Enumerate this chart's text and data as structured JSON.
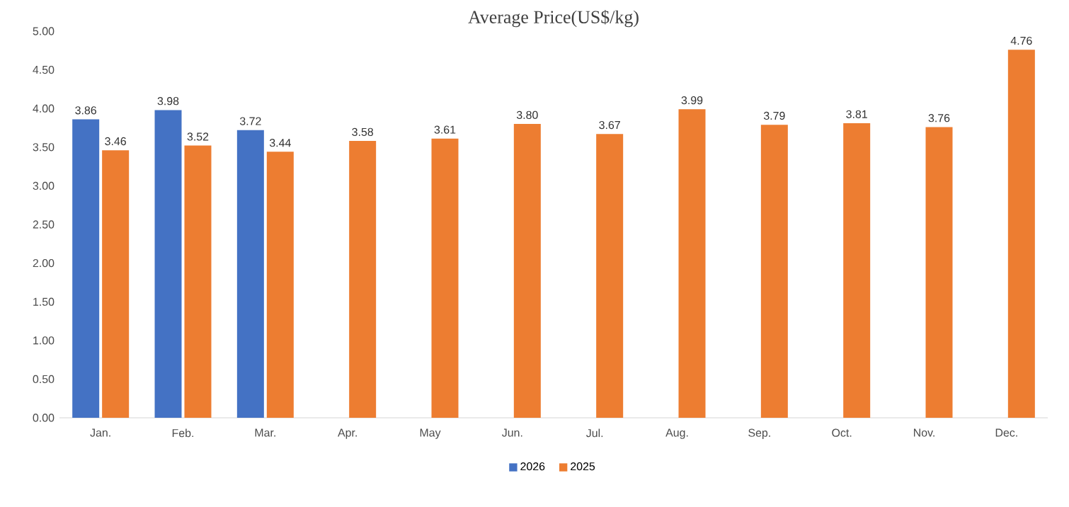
{
  "chart_data": {
    "type": "bar",
    "title": "Average Price(US$/kg)",
    "categories": [
      "Jan.",
      "Feb.",
      "Mar.",
      "Apr.",
      "May",
      "Jun.",
      "Jul.",
      "Aug.",
      "Sep.",
      "Oct.",
      "Nov.",
      "Dec."
    ],
    "series": [
      {
        "name": "2026",
        "color": "#4472c4",
        "values": [
          3.86,
          3.98,
          3.72,
          null,
          null,
          null,
          null,
          null,
          null,
          null,
          null,
          null
        ],
        "value_labels": [
          "3.86",
          "3.98",
          "3.72",
          null,
          null,
          null,
          null,
          null,
          null,
          null,
          null,
          null
        ]
      },
      {
        "name": "2025",
        "color": "#ed7d31",
        "values": [
          3.46,
          3.52,
          3.44,
          3.58,
          3.61,
          3.8,
          3.67,
          3.99,
          3.79,
          3.81,
          3.76,
          4.76
        ],
        "value_labels": [
          "3.46",
          "3.52",
          "3.44",
          "3.58",
          "3.61",
          "3.80",
          "3.67",
          "3.99",
          "3.79",
          "3.81",
          "3.76",
          "4.76"
        ]
      }
    ],
    "ylim": [
      0,
      5
    ],
    "yticks": [
      {
        "value": 0,
        "label": "0.00"
      },
      {
        "value": 0.5,
        "label": "0.50"
      },
      {
        "value": 1,
        "label": "1.00"
      },
      {
        "value": 1.5,
        "label": "1.50"
      },
      {
        "value": 2,
        "label": "2.00"
      },
      {
        "value": 2.5,
        "label": "2.50"
      },
      {
        "value": 3,
        "label": "3.00"
      },
      {
        "value": 3.5,
        "label": "3.50"
      },
      {
        "value": 4,
        "label": "4.00"
      },
      {
        "value": 4.5,
        "label": "4.50"
      },
      {
        "value": 5,
        "label": "5.00"
      }
    ],
    "legend": "bottom"
  }
}
